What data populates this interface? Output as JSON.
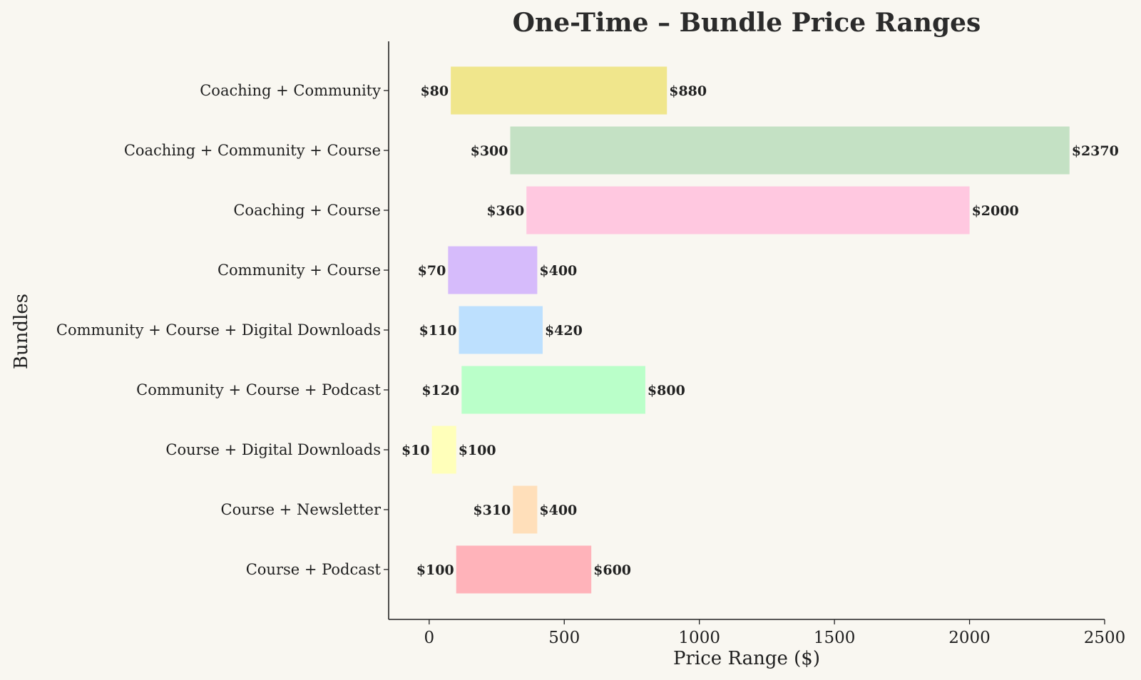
{
  "chart_data": {
    "type": "bar",
    "orientation": "horizontal-range",
    "title": "One-Time – Bundle Price Ranges",
    "xlabel": "Price Range ($)",
    "ylabel": "Bundles",
    "xlim": [
      -150,
      2500
    ],
    "xticks": [
      0,
      500,
      1000,
      1500,
      2000,
      2500
    ],
    "grid": false,
    "categories": [
      "Coaching + Community",
      "Coaching + Community + Course",
      "Coaching + Course",
      "Community + Course",
      "Community + Course + Digital Downloads",
      "Community + Course + Podcast",
      "Course + Digital Downloads",
      "Course + Newsletter",
      "Course + Podcast"
    ],
    "ranges": [
      {
        "min": 80,
        "max": 880,
        "min_label": "$80",
        "max_label": "$880",
        "color": "#f0e68c"
      },
      {
        "min": 300,
        "max": 2370,
        "min_label": "$300",
        "max_label": "$2370",
        "color": "#c4e1c4"
      },
      {
        "min": 360,
        "max": 2000,
        "min_label": "$360",
        "max_label": "$2000",
        "color": "#ffc8e0"
      },
      {
        "min": 70,
        "max": 400,
        "min_label": "$70",
        "max_label": "$400",
        "color": "#d6bbfb"
      },
      {
        "min": 110,
        "max": 420,
        "min_label": "$110",
        "max_label": "$420",
        "color": "#bde0fe"
      },
      {
        "min": 120,
        "max": 800,
        "min_label": "$120",
        "max_label": "$800",
        "color": "#baffc9"
      },
      {
        "min": 10,
        "max": 100,
        "min_label": "$10",
        "max_label": "$100",
        "color": "#ffffba"
      },
      {
        "min": 310,
        "max": 400,
        "min_label": "$310",
        "max_label": "$400",
        "color": "#ffdfba"
      },
      {
        "min": 100,
        "max": 600,
        "min_label": "$100",
        "max_label": "$600",
        "color": "#ffb3ba"
      }
    ]
  }
}
